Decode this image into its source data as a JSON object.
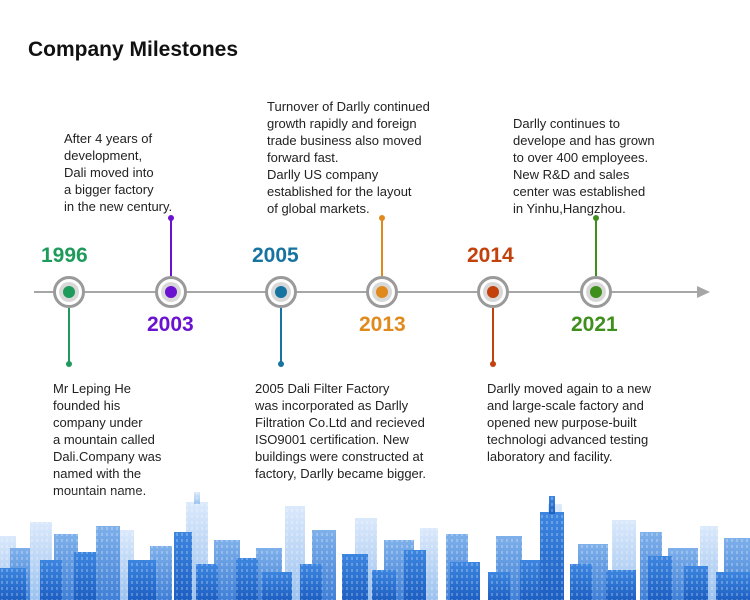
{
  "page": {
    "title": "Company Milestones"
  },
  "milestones": [
    {
      "year": "1996",
      "color": "#1e9b5a",
      "text": "Mr Leping He\nfounded his\ncompany under\na mountain called\nDali.Company was\nnamed with the\nmountain name."
    },
    {
      "year": "2003",
      "color": "#6a12cf",
      "text": "After 4 years of\ndevelopment,\nDali moved into\na bigger factory\nin the new century."
    },
    {
      "year": "2005",
      "color": "#1773a0",
      "text": "2005  Dali Filter Factory\nwas incorporated as Darlly\nFiltration Co.Ltd and recieved\nISO9001 certification. New\nbuildings were constructed at\nfactory, Darlly became bigger."
    },
    {
      "year": "2013",
      "color": "#e08a1e",
      "text": "Turnover of Darlly continued\ngrowth rapidly and foreign\ntrade business also moved\nforward fast.\nDarlly US company\nestablished for the layout\nof global markets."
    },
    {
      "year": "2014",
      "color": "#c2410c",
      "text": "Darlly moved again to a new\nand large-scale factory and\nopened new purpose-built\ntechnologi advanced testing\nlaboratory and facility."
    },
    {
      "year": "2021",
      "color": "#3f8f1d",
      "text": "Darlly continues to\ndevelope and has grown\nto over 400 employees.\nNew R&D and sales\ncenter was established\nin Yinhu,Hangzhou."
    }
  ]
}
